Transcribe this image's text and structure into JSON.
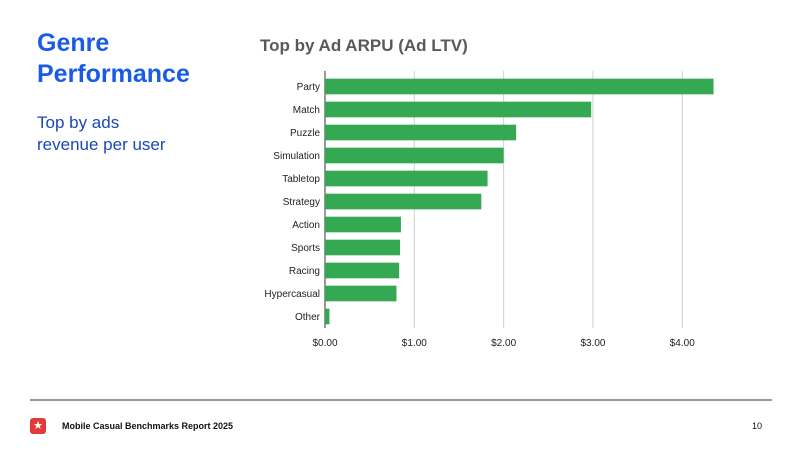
{
  "slide": {
    "title_lines": [
      "Genre",
      "Performance"
    ],
    "subtitle_lines": [
      "Top by ads",
      "revenue per user"
    ]
  },
  "colors": {
    "title": "#1a5be6",
    "subtitle": "#1a47b8",
    "bar": "#34a853",
    "logo": "#e03a3a"
  },
  "chart_data": {
    "type": "bar",
    "orientation": "horizontal",
    "title": "Top by Ad ARPU (Ad LTV)",
    "xlabel": "",
    "ylabel": "",
    "categories": [
      "Party",
      "Match",
      "Puzzle",
      "Simulation",
      "Tabletop",
      "Strategy",
      "Action",
      "Sports",
      "Racing",
      "Hypercasual",
      "Other"
    ],
    "values": [
      4.35,
      2.98,
      2.14,
      2.0,
      1.82,
      1.75,
      0.85,
      0.84,
      0.83,
      0.8,
      0.05
    ],
    "xlim": [
      0,
      4.4
    ],
    "xticks": [
      0,
      1,
      2,
      3,
      4
    ],
    "xtick_labels": [
      "$0.00",
      "$1.00",
      "$2.00",
      "$3.00",
      "$4.00"
    ],
    "grid": "vertical",
    "legend": "none"
  },
  "footer": {
    "logo_icon": "star-icon",
    "logo_glyph": "★",
    "report_title": "Mobile Casual Benchmarks Report 2025",
    "page_number": "10"
  }
}
